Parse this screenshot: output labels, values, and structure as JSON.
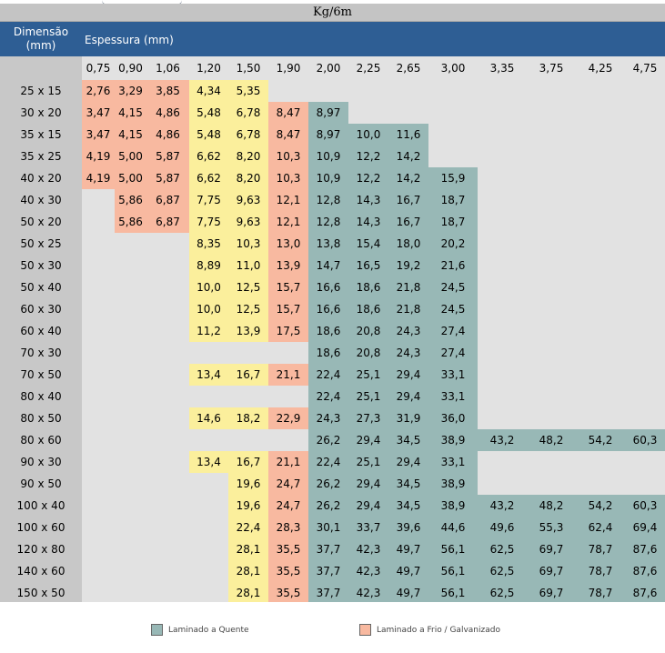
{
  "unit": "Kg/6m",
  "header": {
    "dimension": "Dimensão (mm)",
    "dimension_line1": "Dimensão",
    "dimension_line2": "(mm)",
    "thickness": "Espessura (mm)"
  },
  "thicknesses": [
    "0,75",
    "0,90",
    "1,06",
    "1,20",
    "1,50",
    "1,90",
    "2,00",
    "2,25",
    "2,65",
    "3,00",
    "3,35",
    "3,75",
    "4,25",
    "4,75"
  ],
  "rows": [
    {
      "dim": "25 x 15",
      "values": [
        "2,76",
        "3,29",
        "3,85",
        "4,34",
        "5,35",
        "",
        "",
        "",
        "",
        "",
        "",
        "",
        "",
        ""
      ]
    },
    {
      "dim": "30 x 20",
      "values": [
        "3,47",
        "4,15",
        "4,86",
        "5,48",
        "6,78",
        "8,47",
        "8,97",
        "",
        "",
        "",
        "",
        "",
        "",
        ""
      ]
    },
    {
      "dim": "35 x 15",
      "values": [
        "3,47",
        "4,15",
        "4,86",
        "5,48",
        "6,78",
        "8,47",
        "8,97",
        "10,0",
        "11,6",
        "",
        "",
        "",
        "",
        ""
      ]
    },
    {
      "dim": "35 x 25",
      "values": [
        "4,19",
        "5,00",
        "5,87",
        "6,62",
        "8,20",
        "10,3",
        "10,9",
        "12,2",
        "14,2",
        "",
        "",
        "",
        "",
        ""
      ]
    },
    {
      "dim": "40 x 20",
      "values": [
        "4,19",
        "5,00",
        "5,87",
        "6,62",
        "8,20",
        "10,3",
        "10,9",
        "12,2",
        "14,2",
        "15,9",
        "",
        "",
        "",
        ""
      ]
    },
    {
      "dim": "40 x 30",
      "values": [
        "",
        "5,86",
        "6,87",
        "7,75",
        "9,63",
        "12,1",
        "12,8",
        "14,3",
        "16,7",
        "18,7",
        "",
        "",
        "",
        ""
      ]
    },
    {
      "dim": "50 x 20",
      "values": [
        "",
        "5,86",
        "6,87",
        "7,75",
        "9,63",
        "12,1",
        "12,8",
        "14,3",
        "16,7",
        "18,7",
        "",
        "",
        "",
        ""
      ]
    },
    {
      "dim": "50 x 25",
      "values": [
        "",
        "",
        "",
        "8,35",
        "10,3",
        "13,0",
        "13,8",
        "15,4",
        "18,0",
        "20,2",
        "",
        "",
        "",
        ""
      ]
    },
    {
      "dim": "50 x 30",
      "values": [
        "",
        "",
        "",
        "8,89",
        "11,0",
        "13,9",
        "14,7",
        "16,5",
        "19,2",
        "21,6",
        "",
        "",
        "",
        ""
      ]
    },
    {
      "dim": "50 x 40",
      "values": [
        "",
        "",
        "",
        "10,0",
        "12,5",
        "15,7",
        "16,6",
        "18,6",
        "21,8",
        "24,5",
        "",
        "",
        "",
        ""
      ]
    },
    {
      "dim": "60 x 30",
      "values": [
        "",
        "",
        "",
        "10,0",
        "12,5",
        "15,7",
        "16,6",
        "18,6",
        "21,8",
        "24,5",
        "",
        "",
        "",
        ""
      ]
    },
    {
      "dim": "60 x 40",
      "values": [
        "",
        "",
        "",
        "11,2",
        "13,9",
        "17,5",
        "18,6",
        "20,8",
        "24,3",
        "27,4",
        "",
        "",
        "",
        ""
      ]
    },
    {
      "dim": "70 x 30",
      "values": [
        "",
        "",
        "",
        "",
        "",
        "",
        "18,6",
        "20,8",
        "24,3",
        "27,4",
        "",
        "",
        "",
        ""
      ]
    },
    {
      "dim": "70 x 50",
      "values": [
        "",
        "",
        "",
        "13,4",
        "16,7",
        "21,1",
        "22,4",
        "25,1",
        "29,4",
        "33,1",
        "",
        "",
        "",
        ""
      ]
    },
    {
      "dim": "80 x 40",
      "values": [
        "",
        "",
        "",
        "",
        "",
        "",
        "22,4",
        "25,1",
        "29,4",
        "33,1",
        "",
        "",
        "",
        ""
      ]
    },
    {
      "dim": "80 x 50",
      "values": [
        "",
        "",
        "",
        "14,6",
        "18,2",
        "22,9",
        "24,3",
        "27,3",
        "31,9",
        "36,0",
        "",
        "",
        "",
        ""
      ]
    },
    {
      "dim": "80 x 60",
      "values": [
        "",
        "",
        "",
        "",
        "",
        "",
        "26,2",
        "29,4",
        "34,5",
        "38,9",
        "43,2",
        "48,2",
        "54,2",
        "60,3"
      ]
    },
    {
      "dim": "90 x 30",
      "values": [
        "",
        "",
        "",
        "13,4",
        "16,7",
        "21,1",
        "22,4",
        "25,1",
        "29,4",
        "33,1",
        "",
        "",
        "",
        ""
      ]
    },
    {
      "dim": "90 x 50",
      "values": [
        "",
        "",
        "",
        "",
        "19,6",
        "24,7",
        "26,2",
        "29,4",
        "34,5",
        "38,9",
        "",
        "",
        "",
        ""
      ]
    },
    {
      "dim": "100 x 40",
      "values": [
        "",
        "",
        "",
        "",
        "19,6",
        "24,7",
        "26,2",
        "29,4",
        "34,5",
        "38,9",
        "43,2",
        "48,2",
        "54,2",
        "60,3"
      ]
    },
    {
      "dim": "100 x 60",
      "values": [
        "",
        "",
        "",
        "",
        "22,4",
        "28,3",
        "30,1",
        "33,7",
        "39,6",
        "44,6",
        "49,6",
        "55,3",
        "62,4",
        "69,4"
      ]
    },
    {
      "dim": "120 x 80",
      "values": [
        "",
        "",
        "",
        "",
        "28,1",
        "35,5",
        "37,7",
        "42,3",
        "49,7",
        "56,1",
        "62,5",
        "69,7",
        "78,7",
        "87,6"
      ]
    },
    {
      "dim": "140 x 60",
      "values": [
        "",
        "",
        "",
        "",
        "28,1",
        "35,5",
        "37,7",
        "42,3",
        "49,7",
        "56,1",
        "62,5",
        "69,7",
        "78,7",
        "87,6"
      ]
    },
    {
      "dim": "150 x 50",
      "values": [
        "",
        "",
        "",
        "",
        "28,1",
        "35,5",
        "37,7",
        "42,3",
        "49,7",
        "56,1",
        "62,5",
        "69,7",
        "78,7",
        "87,6"
      ]
    }
  ],
  "legend": {
    "hot": "Laminado a Quente",
    "cold": "Laminado a Frio / Galvanizado"
  },
  "colors": {
    "cold_rolled": "#f8b9a0",
    "light": "#fbef9c",
    "hot_rolled": "#98b8b6",
    "header": "#2e5e94"
  }
}
